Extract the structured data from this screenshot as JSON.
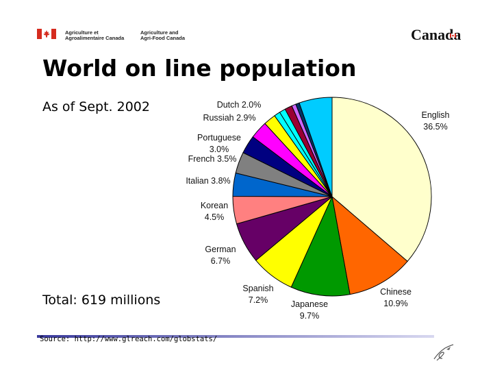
{
  "header": {
    "dept_fr_line1": "Agriculture et",
    "dept_fr_line2": "Agroalimentaire Canada",
    "dept_en_line1": "Agriculture and",
    "dept_en_line2": "Agri-Food Canada",
    "wordmark": "Canada"
  },
  "slide": {
    "title": "World on line population",
    "subtitle": "As of  Sept. 2002",
    "total": "Total: 619 millions",
    "source": "Source: http://www.glreach.com/globstats/"
  },
  "colors": {
    "flag_red": "#d52b1e",
    "footer_line_dark": "#3a3a9c",
    "footer_line_light": "#c8c8e8"
  },
  "chart_data": {
    "type": "pie",
    "title": "World on line population",
    "slices": [
      {
        "name": "English",
        "value": 36.5,
        "label_lines": [
          "English",
          "36.5%"
        ],
        "color": "#ffffcc"
      },
      {
        "name": "Chinese",
        "value": 10.9,
        "label_lines": [
          "Chinese",
          "10.9%"
        ],
        "color": "#ff6600"
      },
      {
        "name": "Japanese",
        "value": 9.7,
        "label_lines": [
          "Japanese",
          "9.7%"
        ],
        "color": "#009900"
      },
      {
        "name": "Spanish",
        "value": 7.2,
        "label_lines": [
          "Spanish",
          "7.2%"
        ],
        "color": "#ffff00"
      },
      {
        "name": "German",
        "value": 6.7,
        "label_lines": [
          "German",
          "6.7%"
        ],
        "color": "#660066"
      },
      {
        "name": "Korean",
        "value": 4.5,
        "label_lines": [
          "Korean",
          "4.5%"
        ],
        "color": "#ff8080"
      },
      {
        "name": "Italian",
        "value": 3.8,
        "label_lines": [
          "Italian 3.8%"
        ],
        "color": "#0066cc"
      },
      {
        "name": "French",
        "value": 3.5,
        "label_lines": [
          "French 3.5%"
        ],
        "color": "#808080"
      },
      {
        "name": "Portuguese",
        "value": 3.0,
        "label_lines": [
          "Portuguese",
          "3.0%"
        ],
        "color": "#000080"
      },
      {
        "name": "Russian",
        "value": 2.9,
        "label_lines": [
          "Russiah 2.9%"
        ],
        "color": "#ff00ff"
      },
      {
        "name": "Dutch",
        "value": 2.0,
        "label_lines": [
          "Dutch 2.0%"
        ],
        "color": "#ffff00"
      },
      {
        "name": "(unlabeled)",
        "value": 1.0,
        "label_lines": [],
        "color": "#00ffff"
      },
      {
        "name": "(unlabeled)",
        "value": 1.0,
        "label_lines": [],
        "color": "#00ffff"
      },
      {
        "name": "(unlabeled)",
        "value": 1.2,
        "label_lines": [],
        "color": "#990033"
      },
      {
        "name": "(unlabeled)",
        "value": 0.7,
        "label_lines": [],
        "color": "#cc66ff"
      },
      {
        "name": "(unlabeled)",
        "value": 0.6,
        "label_lines": [],
        "color": "#003366"
      },
      {
        "name": "(unlabeled)",
        "value": 5.4,
        "label_lines": [],
        "color": "#00ccff"
      }
    ]
  }
}
